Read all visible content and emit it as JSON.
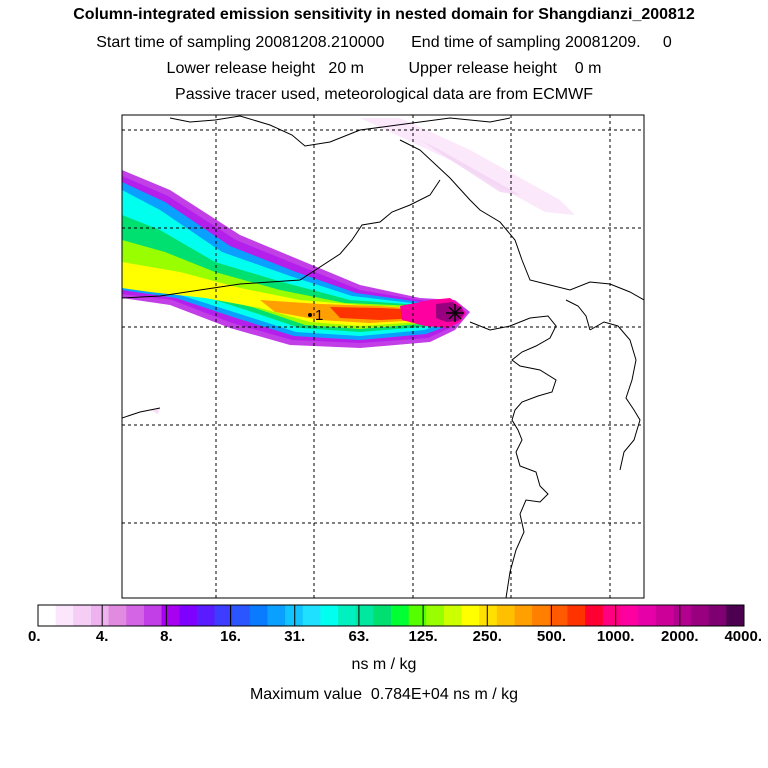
{
  "header": {
    "title": "Column-integrated emission sensitivity in nested domain for Shangdianzi_200812",
    "sampling_line": "Start time of sampling 20081208.210000      End time of sampling 20081209.     0",
    "release_line": "Lower release height   20 m          Upper release height    0 m",
    "tracer_line": "Passive tracer used, meteorological data are from ECMWF"
  },
  "chart_data": {
    "type": "heatmap",
    "title": "Column-integrated emission sensitivity in nested domain for Shangdianzi_200812",
    "receptor_marker_label": "1",
    "colorbar": {
      "tick_labels": [
        "0.",
        "4.",
        "8.",
        "16.",
        "31.",
        "63.",
        "125.",
        "250.",
        "500.",
        "1000.",
        "2000.",
        "4000."
      ],
      "units": "ns m / kg",
      "colors": [
        "#ffffff",
        "#fbe6fb",
        "#f5cdf5",
        "#eeb2ee",
        "#e08be0",
        "#d466e6",
        "#c23fe8",
        "#a800f0",
        "#7f00ff",
        "#5a1cff",
        "#3d3dff",
        "#2a55ff",
        "#0a7bff",
        "#0aa0ff",
        "#10c4ff",
        "#20e0ff",
        "#00ffee",
        "#00f0c0",
        "#00e8a0",
        "#00e070",
        "#00ff33",
        "#55ff00",
        "#99ff00",
        "#ccff00",
        "#ffff00",
        "#ffe000",
        "#ffc000",
        "#ffa000",
        "#ff7f00",
        "#ff5a00",
        "#ff3300",
        "#ff0033",
        "#ff0080",
        "#ff00a0",
        "#e600a8",
        "#cc0099",
        "#b3008f",
        "#990080",
        "#7f0070",
        "#4d0050"
      ]
    },
    "maximum": {
      "text": "Maximum value  0.784E+04 ns m / kg",
      "value": 7840,
      "units": "ns m / kg"
    },
    "grid": true
  }
}
